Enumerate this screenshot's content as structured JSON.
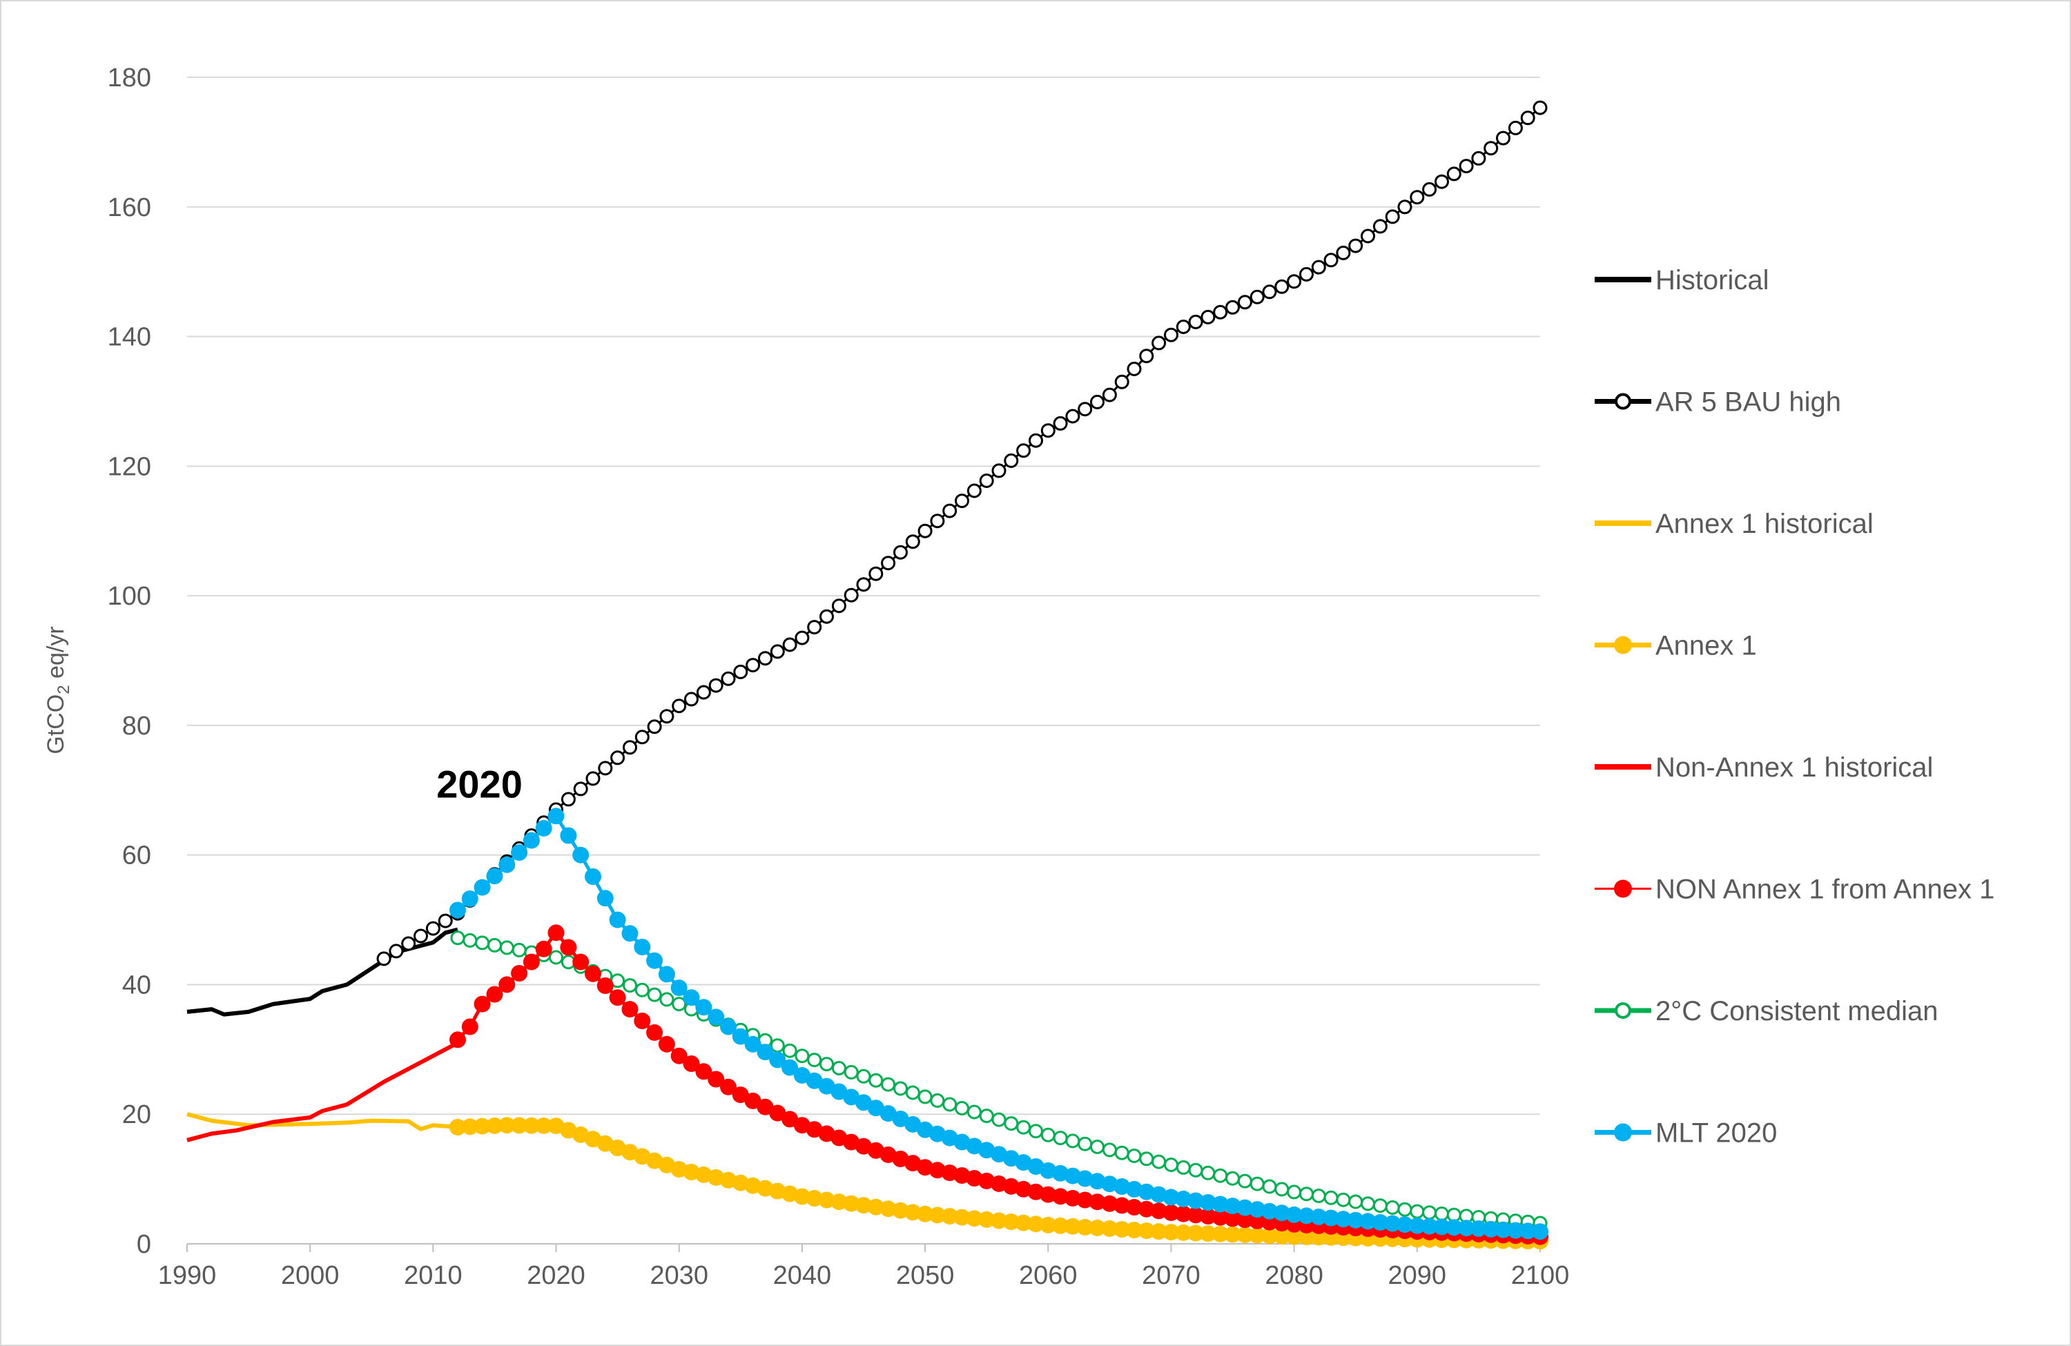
{
  "chart_data": {
    "type": "line",
    "title": "",
    "xlabel": "",
    "ylabel": {
      "main": "GtCO",
      "sub": "2",
      "rest": " eq/yr"
    },
    "xlim": [
      1990,
      2100
    ],
    "ylim": [
      0,
      180
    ],
    "grid": true,
    "legend_position": "right",
    "x_ticks": [
      "1990",
      "2000",
      "2010",
      "2020",
      "2030",
      "2040",
      "2050",
      "2060",
      "2070",
      "2080",
      "2090",
      "2100"
    ],
    "y_ticks": [
      "0",
      "20",
      "40",
      "60",
      "80",
      "100",
      "120",
      "140",
      "160",
      "180"
    ],
    "annotation": {
      "text": "2020",
      "x": 2010.5,
      "y": 71
    },
    "series": [
      {
        "name": "Historical",
        "color": "#000000",
        "style": "line",
        "points": [
          [
            1990,
            35.8
          ],
          [
            1992,
            36.2
          ],
          [
            1993,
            35.4
          ],
          [
            1995,
            35.8
          ],
          [
            1997,
            37.0
          ],
          [
            2000,
            37.8
          ],
          [
            2001,
            39.0
          ],
          [
            2003,
            40.0
          ],
          [
            2005,
            42.5
          ],
          [
            2007,
            45.0
          ],
          [
            2009,
            46.0
          ],
          [
            2010,
            46.5
          ],
          [
            2011,
            48.0
          ],
          [
            2012,
            48.5
          ]
        ]
      },
      {
        "name": "AR 5 BAU high",
        "color": "#000000",
        "style": "open-marker",
        "points": [
          [
            2006,
            44.0
          ],
          [
            2012,
            51.0
          ],
          [
            2020,
            67.0
          ],
          [
            2030,
            83.0
          ],
          [
            2040,
            93.5
          ],
          [
            2050,
            110.0
          ],
          [
            2060,
            125.5
          ],
          [
            2065,
            131.0
          ],
          [
            2069,
            139.0
          ],
          [
            2071,
            141.5
          ],
          [
            2075,
            144.5
          ],
          [
            2080,
            148.5
          ],
          [
            2085,
            154.0
          ],
          [
            2090,
            161.5
          ],
          [
            2095,
            167.5
          ],
          [
            2100,
            175.3
          ]
        ]
      },
      {
        "name": "Annex 1 historical",
        "color": "#ffc000",
        "style": "line",
        "points": [
          [
            1990,
            20.0
          ],
          [
            1992,
            19.0
          ],
          [
            1995,
            18.3
          ],
          [
            2000,
            18.5
          ],
          [
            2003,
            18.7
          ],
          [
            2005,
            19.0
          ],
          [
            2008,
            18.9
          ],
          [
            2009,
            17.7
          ],
          [
            2010,
            18.3
          ],
          [
            2012,
            18.0
          ]
        ]
      },
      {
        "name": "Annex 1",
        "color": "#ffc000",
        "style": "filled-marker",
        "points": [
          [
            2012,
            18.0
          ],
          [
            2016,
            18.3
          ],
          [
            2020,
            18.2
          ],
          [
            2025,
            14.8
          ],
          [
            2030,
            11.5
          ],
          [
            2040,
            7.3
          ],
          [
            2050,
            4.6
          ],
          [
            2060,
            2.9
          ],
          [
            2070,
            1.8
          ],
          [
            2080,
            1.1
          ],
          [
            2090,
            0.7
          ],
          [
            2100,
            0.4
          ]
        ]
      },
      {
        "name": "Non-Annex 1 historical",
        "color": "#ff0000",
        "style": "line",
        "points": [
          [
            1990,
            16.0
          ],
          [
            1992,
            17.0
          ],
          [
            1994,
            17.5
          ],
          [
            1997,
            18.8
          ],
          [
            2000,
            19.5
          ],
          [
            2001,
            20.5
          ],
          [
            2003,
            21.5
          ],
          [
            2006,
            25.0
          ],
          [
            2009,
            28.0
          ],
          [
            2012,
            31.0
          ]
        ]
      },
      {
        "name": "NON Annex 1 from Annex 1",
        "color": "#ff0000",
        "style": "filled-marker",
        "points": [
          [
            2012,
            31.5
          ],
          [
            2013,
            33.5
          ],
          [
            2014,
            37.0
          ],
          [
            2016,
            40.0
          ],
          [
            2018,
            43.5
          ],
          [
            2019,
            45.5
          ],
          [
            2020,
            48.0
          ],
          [
            2022,
            43.5
          ],
          [
            2025,
            38.0
          ],
          [
            2030,
            29.0
          ],
          [
            2035,
            23.0
          ],
          [
            2040,
            18.3
          ],
          [
            2050,
            11.8
          ],
          [
            2060,
            7.6
          ],
          [
            2070,
            4.8
          ],
          [
            2080,
            3.0
          ],
          [
            2090,
            1.9
          ],
          [
            2100,
            1.1
          ]
        ]
      },
      {
        "name": "2°C  Consistent median",
        "color": "#00b050",
        "style": "open-marker",
        "points": [
          [
            2012,
            47.2
          ],
          [
            2020,
            44.2
          ],
          [
            2030,
            37.0
          ],
          [
            2040,
            29.0
          ],
          [
            2050,
            22.7
          ],
          [
            2060,
            16.8
          ],
          [
            2070,
            12.2
          ],
          [
            2080,
            8.0
          ],
          [
            2090,
            5.0
          ],
          [
            2100,
            3.2
          ]
        ]
      },
      {
        "name": "MLT 2020",
        "color": "#00b0f0",
        "style": "filled-marker",
        "points": [
          [
            2012,
            51.5
          ],
          [
            2016,
            58.5
          ],
          [
            2020,
            66.0
          ],
          [
            2022,
            60.0
          ],
          [
            2025,
            50.0
          ],
          [
            2030,
            39.5
          ],
          [
            2035,
            32.0
          ],
          [
            2040,
            26.0
          ],
          [
            2050,
            17.6
          ],
          [
            2060,
            11.3
          ],
          [
            2070,
            7.2
          ],
          [
            2080,
            4.5
          ],
          [
            2090,
            2.8
          ],
          [
            2100,
            1.9
          ]
        ]
      }
    ]
  }
}
